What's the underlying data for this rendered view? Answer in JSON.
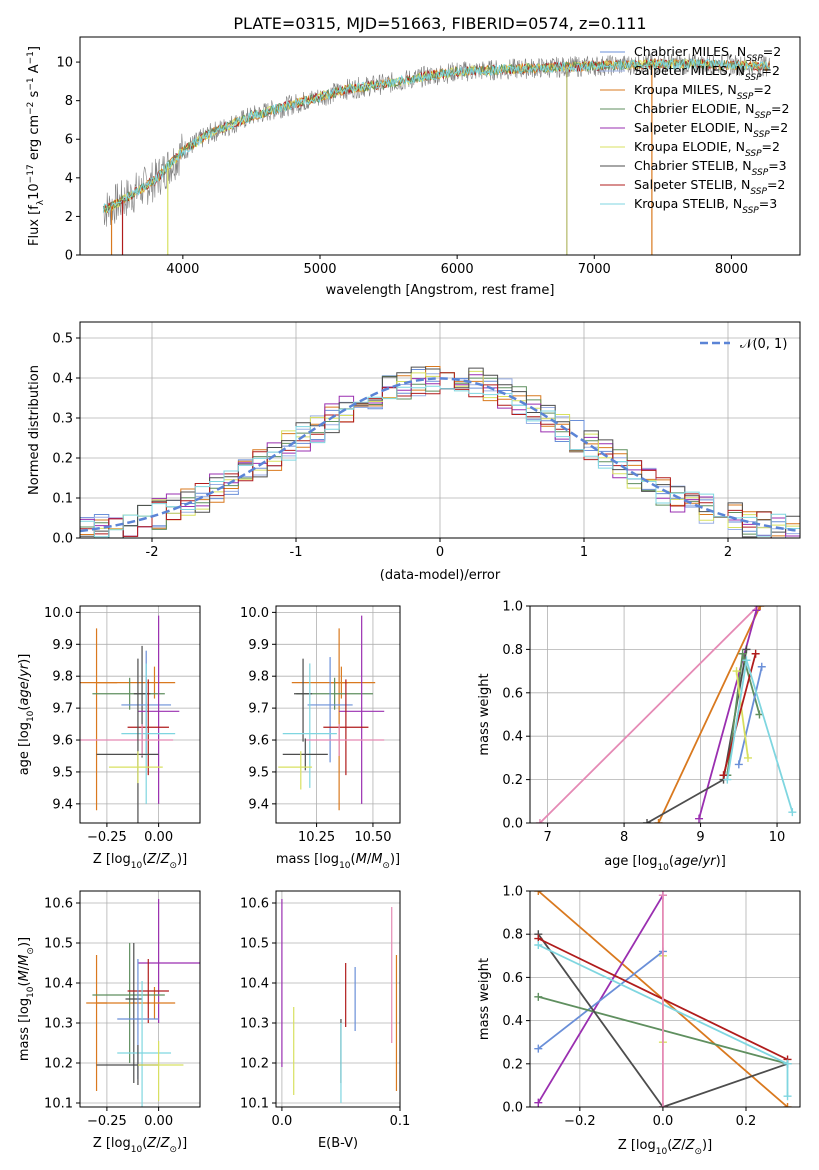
{
  "figure_title": "PLATE=0315, MJD=51663, FIBERID=0574, z=0.111",
  "colors": {
    "Chabrier MILES": "#6a8fd8",
    "Salpeter MILES": "#9bb0e6",
    "Kroupa MILES": "#d9791f",
    "Chabrier ELODIE": "#5f8f5f",
    "Salpeter ELODIE": "#9a2fb0",
    "Kroupa ELODIE": "#d8e060",
    "Chabrier STELIB": "#4d4d4d",
    "Salpeter STELIB": "#b01c1c",
    "Kroupa STELIB": "#7fd6e0",
    "pink": "#e58ab5",
    "data_gray": "#808080",
    "normal_curve": "#5b84d6"
  },
  "chart_data": [
    {
      "type": "line",
      "xlabel": "wavelength [Angstrom, rest frame]",
      "ylabel": "Flux [f_λ 10^-17 erg cm^-2 s^-1 A^-1]",
      "xlim": [
        3250,
        8500
      ],
      "ylim": [
        0,
        11.3
      ],
      "xticks": [
        4000,
        5000,
        6000,
        7000,
        8000
      ],
      "yticks": [
        0,
        2,
        4,
        6,
        8,
        10
      ],
      "legend_placement": "right",
      "legend": [
        {
          "label": "Chabrier MILES",
          "n": "2",
          "color_key": "Chabrier MILES"
        },
        {
          "label": "Salpeter MILES",
          "n": "2",
          "color_key": "Salpeter MILES"
        },
        {
          "label": "Kroupa MILES",
          "n": "2",
          "color_key": "Kroupa MILES"
        },
        {
          "label": "Chabrier ELODIE",
          "n": "2",
          "color_key": "Chabrier ELODIE"
        },
        {
          "label": "Salpeter ELODIE",
          "n": "2",
          "color_key": "Salpeter ELODIE"
        },
        {
          "label": "Kroupa ELODIE",
          "n": "2",
          "color_key": "Kroupa ELODIE"
        },
        {
          "label": "Chabrier STELIB",
          "n": "3",
          "color_key": "Chabrier STELIB"
        },
        {
          "label": "Salpeter STELIB",
          "n": "2",
          "color_key": "Salpeter STELIB"
        },
        {
          "label": "Kroupa STELIB",
          "n": "3",
          "color_key": "Kroupa STELIB"
        }
      ],
      "continuum": {
        "x": [
          3450,
          3600,
          3800,
          4000,
          4200,
          4500,
          4800,
          5000,
          5200,
          5500,
          5800,
          6000,
          6300,
          6600,
          7000,
          7400,
          7800,
          8200
        ],
        "y": [
          2.4,
          3.0,
          3.9,
          5.4,
          6.3,
          7.2,
          7.8,
          8.2,
          8.6,
          8.9,
          9.3,
          9.5,
          9.6,
          9.7,
          9.8,
          9.9,
          9.9,
          9.8
        ]
      },
      "x_start": 3420,
      "x_end": 8280
    },
    {
      "type": "histogram",
      "xlabel": "(data-model)/error",
      "ylabel": "Normed distribution",
      "xlim": [
        -2.5,
        2.5
      ],
      "ylim": [
        0,
        0.54
      ],
      "xticks": [
        -2,
        -1,
        0,
        1,
        2
      ],
      "yticks": [
        0.0,
        0.1,
        0.2,
        0.3,
        0.4,
        0.5
      ],
      "grid": true,
      "bin_width": 0.1,
      "curve_label": "𝒩(0, 1)",
      "legend_placement": "top-right",
      "series_color_keys": [
        "Chabrier MILES",
        "Salpeter MILES",
        "Kroupa MILES",
        "Chabrier ELODIE",
        "Salpeter ELODIE",
        "Kroupa ELODIE",
        "Chabrier STELIB",
        "Salpeter STELIB",
        "Kroupa STELIB"
      ]
    },
    {
      "type": "scatter",
      "xlabel": "Z [log10(Z/Z⊙)]",
      "ylabel": "age  [log10(age/yr)]",
      "xlim": [
        -0.38,
        0.2
      ],
      "ylim": [
        9.34,
        10.02
      ],
      "xticks": [
        -0.25,
        0.0
      ],
      "xticklabels": [
        "−0.25",
        "0.00"
      ],
      "yticks": [
        9.4,
        9.5,
        9.6,
        9.7,
        9.8,
        9.9,
        10.0
      ],
      "grid": true,
      "points": [
        {
          "c": "Kroupa MILES",
          "x": -0.3,
          "xerr": [
            0.1,
            0.1
          ],
          "y": 9.78,
          "yerr": [
            0.4,
            0.17
          ]
        },
        {
          "c": "Kroupa MILES",
          "x": -0.02,
          "xerr": [
            0.28,
            0.1
          ],
          "y": 9.78,
          "yerr": [
            0.05,
            0.05
          ]
        },
        {
          "c": "Chabrier ELODIE",
          "x": -0.14,
          "xerr": [
            0.18,
            0.17
          ],
          "y": 9.745,
          "yerr": [
            0.05,
            0.05
          ]
        },
        {
          "c": "Chabrier STELIB",
          "x": -0.08,
          "xerr": [
            0.04,
            0.04
          ],
          "y": 9.745,
          "yerr": [
            0.2,
            0.15
          ]
        },
        {
          "c": "Chabrier MILES",
          "x": -0.06,
          "xerr": [
            0.12,
            0.12
          ],
          "y": 9.71,
          "yerr": [
            0.15,
            0.17
          ]
        },
        {
          "c": "Salpeter ELODIE",
          "x": 0.0,
          "xerr": [
            0.1,
            0.1
          ],
          "y": 9.69,
          "yerr": [
            0.29,
            0.3
          ]
        },
        {
          "c": "Salpeter STELIB",
          "x": -0.05,
          "xerr": [
            0.1,
            0.1
          ],
          "y": 9.64,
          "yerr": [
            0.15,
            0.15
          ]
        },
        {
          "c": "Kroupa STELIB",
          "x": -0.06,
          "xerr": [
            0.12,
            0.14
          ],
          "y": 9.62,
          "yerr": [
            0.22,
            0.22
          ]
        },
        {
          "c": "pink",
          "x": -0.08,
          "xerr": [
            0.3,
            0.15
          ],
          "y": 9.6,
          "yerr": [
            0.05,
            0.05
          ]
        },
        {
          "c": "Chabrier STELIB",
          "x": -0.1,
          "xerr": [
            0.2,
            0.1
          ],
          "y": 9.555,
          "yerr": [
            0.35,
            0.3
          ]
        },
        {
          "c": "Kroupa ELODIE",
          "x": -0.1,
          "xerr": [
            0.14,
            0.12
          ],
          "y": 9.515,
          "yerr": [
            0.05,
            0.05
          ]
        }
      ]
    },
    {
      "type": "scatter",
      "xlabel": "mass [log10(M/M⊙)]",
      "ylabel": "",
      "xlim": [
        10.07,
        10.62
      ],
      "ylim": [
        9.34,
        10.02
      ],
      "xticks": [
        10.25,
        10.5
      ],
      "xticklabels": [
        "10.25",
        "10.50"
      ],
      "yticks": [
        9.4,
        9.5,
        9.6,
        9.7,
        9.8,
        9.9,
        10.0
      ],
      "grid": true,
      "points": [
        {
          "c": "Kroupa MILES",
          "x": 10.36,
          "xerr": [
            0.22,
            0.15
          ],
          "y": 9.78,
          "yerr": [
            0.05,
            0.05
          ]
        },
        {
          "c": "Kroupa MILES",
          "x": 10.35,
          "xerr": [
            0.04,
            0.04
          ],
          "y": 9.78,
          "yerr": [
            0.4,
            0.17
          ]
        },
        {
          "c": "Chabrier ELODIE",
          "x": 10.33,
          "xerr": [
            0.17,
            0.17
          ],
          "y": 9.745,
          "yerr": [
            0.05,
            0.05
          ]
        },
        {
          "c": "Chabrier STELIB",
          "x": 10.19,
          "xerr": [
            0.04,
            0.04
          ],
          "y": 9.745,
          "yerr": [
            0.15,
            0.11
          ]
        },
        {
          "c": "Chabrier MILES",
          "x": 10.31,
          "xerr": [
            0.1,
            0.1
          ],
          "y": 9.71,
          "yerr": [
            0.18,
            0.15
          ]
        },
        {
          "c": "Salpeter ELODIE",
          "x": 10.45,
          "xerr": [
            0.1,
            0.1
          ],
          "y": 9.69,
          "yerr": [
            0.29,
            0.3
          ]
        },
        {
          "c": "Salpeter STELIB",
          "x": 10.38,
          "xerr": [
            0.1,
            0.1
          ],
          "y": 9.64,
          "yerr": [
            0.15,
            0.15
          ]
        },
        {
          "c": "Kroupa STELIB",
          "x": 10.22,
          "xerr": [
            0.12,
            0.12
          ],
          "y": 9.62,
          "yerr": [
            0.17,
            0.22
          ]
        },
        {
          "c": "pink",
          "x": 10.35,
          "xerr": [
            0.15,
            0.2
          ],
          "y": 9.6,
          "yerr": [
            0.05,
            0.05
          ]
        },
        {
          "c": "Chabrier STELIB",
          "x": 10.2,
          "xerr": [
            0.1,
            0.1
          ],
          "y": 9.555,
          "yerr": [
            0.05,
            0.05
          ]
        },
        {
          "c": "Kroupa ELODIE",
          "x": 10.18,
          "xerr": [
            0.1,
            0.05
          ],
          "y": 9.515,
          "yerr": [
            0.07,
            0.05
          ]
        }
      ]
    },
    {
      "type": "line",
      "xlabel": "age  [log10(age/yr)]",
      "ylabel": "mass weight",
      "xlim": [
        6.77,
        10.3
      ],
      "ylim": [
        0,
        1.0
      ],
      "xticks": [
        7,
        8,
        9,
        10
      ],
      "yticks": [
        0.0,
        0.2,
        0.4,
        0.6,
        0.8,
        1.0
      ],
      "grid": true,
      "series": [
        {
          "c": "pink",
          "x": [
            6.9,
            9.75
          ],
          "y": [
            0.0,
            1.0
          ]
        },
        {
          "c": "Kroupa MILES",
          "x": [
            8.45,
            9.78
          ],
          "y": [
            0.0,
            1.0
          ]
        },
        {
          "c": "Salpeter ELODIE",
          "x": [
            8.98,
            9.73
          ],
          "y": [
            0.02,
            0.98
          ]
        },
        {
          "c": "Chabrier STELIB",
          "x": [
            8.3,
            9.3,
            9.6
          ],
          "y": [
            0.0,
            0.2,
            0.8
          ]
        },
        {
          "c": "Chabrier ELODIE",
          "x": [
            9.35,
            9.55,
            9.77
          ],
          "y": [
            0.22,
            0.78,
            0.5
          ]
        },
        {
          "c": "Chabrier MILES",
          "x": [
            9.5,
            9.8
          ],
          "y": [
            0.27,
            0.72
          ]
        },
        {
          "c": "Kroupa ELODIE",
          "x": [
            9.47,
            9.62
          ],
          "y": [
            0.7,
            0.3
          ]
        },
        {
          "c": "Salpeter STELIB",
          "x": [
            9.3,
            9.72
          ],
          "y": [
            0.22,
            0.78
          ]
        },
        {
          "c": "Kroupa STELIB",
          "x": [
            9.35,
            9.6,
            10.2
          ],
          "y": [
            0.2,
            0.75,
            0.05
          ]
        }
      ]
    },
    {
      "type": "scatter",
      "xlabel": "Z [log10(Z/Z⊙)]",
      "ylabel": "mass [log10(M/M⊙)]",
      "xlim": [
        -0.38,
        0.2
      ],
      "ylim": [
        10.09,
        10.63
      ],
      "xticks": [
        -0.25,
        0.0
      ],
      "xticklabels": [
        "−0.25",
        "0.00"
      ],
      "yticks": [
        10.1,
        10.2,
        10.3,
        10.4,
        10.5,
        10.6
      ],
      "grid": true,
      "points": [
        {
          "c": "Salpeter ELODIE",
          "x": 0.0,
          "xerr": [
            0.1,
            0.25
          ],
          "y": 10.45,
          "yerr": [
            0.15,
            0.16
          ]
        },
        {
          "c": "Kroupa MILES",
          "x": -0.3,
          "xerr": [
            0.05,
            0.05
          ],
          "y": 10.35,
          "yerr": [
            0.22,
            0.12
          ]
        },
        {
          "c": "Kroupa MILES",
          "x": -0.02,
          "xerr": [
            0.28,
            0.1
          ],
          "y": 10.35,
          "yerr": [
            0.04,
            0.04
          ]
        },
        {
          "c": "Chabrier ELODIE",
          "x": -0.14,
          "xerr": [
            0.18,
            0.17
          ],
          "y": 10.37,
          "yerr": [
            0.17,
            0.13
          ]
        },
        {
          "c": "Chabrier STELIB",
          "x": -0.12,
          "xerr": [
            0.04,
            0.04
          ],
          "y": 10.36,
          "yerr": [
            0.21,
            0.14
          ]
        },
        {
          "c": "Salpeter STELIB",
          "x": -0.05,
          "xerr": [
            0.1,
            0.1
          ],
          "y": 10.38,
          "yerr": [
            0.08,
            0.08
          ]
        },
        {
          "c": "Chabrier MILES",
          "x": -0.1,
          "xerr": [
            0.1,
            0.1
          ],
          "y": 10.31,
          "yerr": [
            0.15,
            0.15
          ]
        },
        {
          "c": "Kroupa STELIB",
          "x": -0.08,
          "xerr": [
            0.12,
            0.14
          ],
          "y": 10.225,
          "yerr": [
            0.18,
            0.18
          ]
        },
        {
          "c": "Chabrier STELIB",
          "x": -0.1,
          "xerr": [
            0.2,
            0.1
          ],
          "y": 10.195,
          "yerr": [
            0.05,
            0.05
          ]
        },
        {
          "c": "Kroupa ELODIE",
          "x": 0.0,
          "xerr": [
            0.1,
            0.12
          ],
          "y": 10.195,
          "yerr": [
            0.09,
            0.06
          ]
        }
      ]
    },
    {
      "type": "scatter",
      "xlabel": "E(B-V)",
      "ylabel": "",
      "xlim": [
        -0.005,
        0.1
      ],
      "ylim": [
        10.09,
        10.63
      ],
      "xticks": [
        0.0,
        0.1
      ],
      "xticklabels": [
        "0.0",
        "0.1"
      ],
      "yticks": [
        10.1,
        10.2,
        10.3,
        10.4,
        10.5,
        10.6
      ],
      "grid": true,
      "points": [
        {
          "c": "Salpeter ELODIE",
          "x": 0.0,
          "y": 10.45,
          "yerr": [
            0.26,
            0.16
          ]
        },
        {
          "c": "Kroupa ELODIE",
          "x": 0.01,
          "y": 10.22,
          "yerr": [
            0.1,
            0.12
          ]
        },
        {
          "c": "Chabrier STELIB",
          "x": 0.05,
          "y": 10.23,
          "yerr": [
            0.08,
            0.08
          ]
        },
        {
          "c": "Kroupa STELIB",
          "x": 0.05,
          "y": 10.2,
          "yerr": [
            0.1,
            0.1
          ]
        },
        {
          "c": "Salpeter STELIB",
          "x": 0.054,
          "y": 10.37,
          "yerr": [
            0.08,
            0.08
          ]
        },
        {
          "c": "Chabrier MILES",
          "x": 0.062,
          "y": 10.34,
          "yerr": [
            0.06,
            0.1
          ]
        },
        {
          "c": "pink",
          "x": 0.093,
          "y": 10.42,
          "yerr": [
            0.17,
            0.17
          ]
        },
        {
          "c": "Kroupa MILES",
          "x": 0.097,
          "y": 10.3,
          "yerr": [
            0.17,
            0.17
          ]
        }
      ]
    },
    {
      "type": "line",
      "xlabel": "Z [log10(Z/Z⊙)]",
      "ylabel": "mass weight",
      "xlim": [
        -0.32,
        0.33
      ],
      "ylim": [
        0,
        1.0
      ],
      "xticks": [
        -0.2,
        0.0,
        0.2
      ],
      "xticklabels": [
        "−0.2",
        "0.0",
        "0.2"
      ],
      "yticks": [
        0.0,
        0.2,
        0.4,
        0.6,
        0.8,
        1.0
      ],
      "grid": true,
      "series": [
        {
          "c": "Kroupa MILES",
          "x": [
            -0.3,
            0.3
          ],
          "y": [
            1.0,
            0.0
          ]
        },
        {
          "c": "Salpeter ELODIE",
          "x": [
            -0.3,
            0.0
          ],
          "y": [
            0.02,
            0.98
          ]
        },
        {
          "c": "Chabrier MILES",
          "x": [
            -0.3,
            0.0
          ],
          "y": [
            0.27,
            0.72
          ]
        },
        {
          "c": "Chabrier ELODIE",
          "x": [
            -0.3,
            0.3
          ],
          "y": [
            0.51,
            0.2
          ]
        },
        {
          "c": "Chabrier STELIB",
          "x": [
            -0.3,
            0.0,
            0.3
          ],
          "y": [
            0.8,
            0.0,
            0.2
          ]
        },
        {
          "c": "Salpeter STELIB",
          "x": [
            -0.3,
            0.3
          ],
          "y": [
            0.78,
            0.22
          ]
        },
        {
          "c": "Kroupa STELIB",
          "x": [
            -0.3,
            0.3
          ],
          "y": [
            0.75,
            0.2
          ]
        },
        {
          "c": "Kroupa ELODIE",
          "x": [
            0.0,
            0.0
          ],
          "y": [
            0.7,
            0.3
          ]
        },
        {
          "c": "pink",
          "x": [
            0.0,
            0.0
          ],
          "y": [
            0.0,
            0.98
          ]
        },
        {
          "c": "Kroupa STELIB",
          "x": [
            0.3,
            0.3
          ],
          "y": [
            0.2,
            0.05
          ]
        }
      ]
    }
  ]
}
